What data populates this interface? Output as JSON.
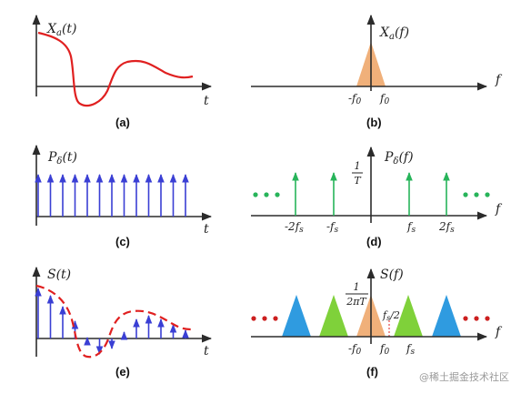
{
  "panels": {
    "a": {
      "ylabel": "X",
      "ysub": "a",
      "yarg": "(t)",
      "xlabel": "t",
      "caption": "(a)"
    },
    "b": {
      "ylabel": "X",
      "ysub": "a",
      "yarg": "(f)",
      "xlabel": "f",
      "tick_left": "-f",
      "tick_left_sub": "0",
      "tick_right": "f",
      "tick_right_sub": "0",
      "caption": "(b)"
    },
    "c": {
      "ylabel": "P",
      "ysub": "δ",
      "yarg": "(t)",
      "xlabel": "t",
      "caption": "(c)"
    },
    "d": {
      "ylabel": "P",
      "ysub": "δ",
      "yarg": "(f)",
      "xlabel": "f",
      "amp_num": "1",
      "amp_den": "T",
      "ticks": [
        "-2f",
        "-f",
        "f",
        "2f"
      ],
      "tick_sub": "s",
      "caption": "(d)"
    },
    "e": {
      "ylabel": "S(t)",
      "xlabel": "t",
      "caption": "(e)"
    },
    "f": {
      "ylabel": "S(f)",
      "xlabel": "f",
      "amp_num": "1",
      "amp_den": "2πT",
      "half_label": "f",
      "half_sub": "s",
      "half_tail": "/2",
      "ticks": [
        "-f",
        "f",
        "f"
      ],
      "tick_subs": [
        "0",
        "0",
        "s"
      ],
      "caption": "(f)"
    }
  },
  "watermark": "@稀土掘金技术社区",
  "colors": {
    "signal": "#e02020",
    "impulse": "#3a3fd4",
    "freq_impulse": "#27b45a",
    "base_spectrum": "#f0b07a",
    "green_spectrum": "#7fd13a",
    "blue_spectrum": "#2f9be0"
  }
}
